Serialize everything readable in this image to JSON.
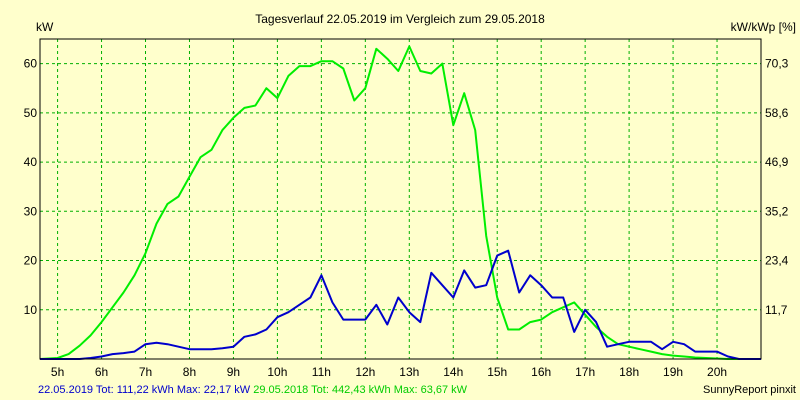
{
  "chart_data": {
    "type": "line",
    "title": "Tagesverlauf 22.05.2019 im Vergleich zum 29.05.2018",
    "ylabel_left": "kW",
    "ylabel_right": "kW/kWp [%]",
    "xlabel": "",
    "xlim": [
      4.6,
      21.0
    ],
    "ylim": [
      0,
      65
    ],
    "grid": true,
    "x_ticks": [
      5,
      6,
      7,
      8,
      9,
      10,
      11,
      12,
      13,
      14,
      15,
      16,
      17,
      18,
      19,
      20
    ],
    "x_tick_labels": [
      "5h",
      "6h",
      "7h",
      "8h",
      "9h",
      "10h",
      "11h",
      "12h",
      "13h",
      "14h",
      "15h",
      "16h",
      "17h",
      "18h",
      "19h",
      "20h"
    ],
    "y_ticks": [
      10,
      20,
      30,
      40,
      50,
      60
    ],
    "y_tick_labels": [
      "10",
      "20",
      "30",
      "40",
      "50",
      "60"
    ],
    "y_right_ticks": [
      {
        "y": 10,
        "label": "11,7"
      },
      {
        "y": 20,
        "label": "23,4"
      },
      {
        "y": 30,
        "label": "35,2"
      },
      {
        "y": 40,
        "label": "46,9"
      },
      {
        "y": 50,
        "label": "58,6"
      },
      {
        "y": 60,
        "label": "70,3"
      }
    ],
    "series": [
      {
        "name": "29.05.2018",
        "color": "#00ee00",
        "x": [
          4.6,
          5.0,
          5.25,
          5.5,
          5.75,
          6.0,
          6.25,
          6.5,
          6.75,
          7.0,
          7.25,
          7.5,
          7.75,
          8.0,
          8.25,
          8.5,
          8.75,
          9.0,
          9.25,
          9.5,
          9.75,
          10.0,
          10.25,
          10.5,
          10.75,
          11.0,
          11.25,
          11.5,
          11.75,
          12.0,
          12.25,
          12.5,
          12.75,
          13.0,
          13.25,
          13.5,
          13.75,
          14.0,
          14.25,
          14.5,
          14.75,
          15.0,
          15.25,
          15.5,
          15.75,
          16.0,
          16.25,
          16.5,
          16.75,
          17.0,
          17.25,
          17.5,
          17.75,
          18.0,
          18.25,
          18.5,
          18.75,
          19.0,
          19.25,
          19.5,
          19.75,
          20.0,
          20.25,
          20.5,
          21.0
        ],
        "y": [
          0,
          0.2,
          1.0,
          2.7,
          4.8,
          7.5,
          10.5,
          13.5,
          17.0,
          21.5,
          27.5,
          31.5,
          33.0,
          37.0,
          41.0,
          42.5,
          46.5,
          49.0,
          51.0,
          51.5,
          55.0,
          53.0,
          57.5,
          59.5,
          59.5,
          60.5,
          60.5,
          59.0,
          52.5,
          55.0,
          63.0,
          61.0,
          58.5,
          63.5,
          58.5,
          58.0,
          60.0,
          47.5,
          54.0,
          46.5,
          25.0,
          12.5,
          6.0,
          6.0,
          7.5,
          8.0,
          9.5,
          10.5,
          11.5,
          9.0,
          6.5,
          4.5,
          3.0,
          2.5,
          2.0,
          1.5,
          1.0,
          0.7,
          0.5,
          0.3,
          0.2,
          0.1,
          0,
          0,
          0
        ]
      },
      {
        "name": "22.05.2019",
        "color": "#0000cc",
        "x": [
          4.6,
          5.5,
          5.75,
          6.0,
          6.25,
          6.5,
          6.75,
          7.0,
          7.25,
          7.5,
          7.75,
          8.0,
          8.25,
          8.5,
          8.75,
          9.0,
          9.25,
          9.5,
          9.75,
          10.0,
          10.25,
          10.5,
          10.75,
          11.0,
          11.25,
          11.5,
          11.75,
          12.0,
          12.25,
          12.5,
          12.75,
          13.0,
          13.25,
          13.5,
          13.75,
          14.0,
          14.25,
          14.5,
          14.75,
          15.0,
          15.25,
          15.5,
          15.75,
          16.0,
          16.25,
          16.5,
          16.75,
          17.0,
          17.25,
          17.5,
          17.75,
          18.0,
          18.25,
          18.5,
          18.75,
          19.0,
          19.25,
          19.5,
          19.75,
          20.0,
          20.25,
          20.5,
          21.0
        ],
        "y": [
          0,
          0,
          0.2,
          0.5,
          1.0,
          1.2,
          1.5,
          3.0,
          3.3,
          3.0,
          2.5,
          2.0,
          2.0,
          2.0,
          2.2,
          2.5,
          4.5,
          5.0,
          6.0,
          8.5,
          9.5,
          11.0,
          12.5,
          17.0,
          11.5,
          8.0,
          8.0,
          8.0,
          11.0,
          7.0,
          12.5,
          9.5,
          7.5,
          17.5,
          15.0,
          12.5,
          18.0,
          14.5,
          15.0,
          21.0,
          22.0,
          13.5,
          17.0,
          15.0,
          12.5,
          12.5,
          5.5,
          10.0,
          7.5,
          2.5,
          3.0,
          3.5,
          3.5,
          3.5,
          2.0,
          3.5,
          3.0,
          1.5,
          1.5,
          1.5,
          0.5,
          0,
          0
        ]
      }
    ],
    "footer": {
      "prefix": "22.05.2019 Tot: 111,22 kWh Max: 22,17 kW",
      "prefix_color": "#0000cc",
      "suffix": "29.05.2018 Tot: 442,43 kWh Max: 63,67 kW",
      "suffix_color": "#00cc00"
    },
    "credit": "SunnyReport pinxit"
  }
}
